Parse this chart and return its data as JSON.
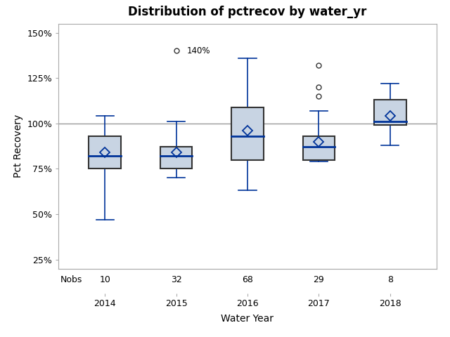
{
  "title": "Distribution of pctrecov by water_yr",
  "xlabel": "Water Year",
  "ylabel": "Pct Recovery",
  "years": [
    2014,
    2015,
    2016,
    2017,
    2018
  ],
  "nobs": [
    10,
    32,
    68,
    29,
    8
  ],
  "boxes": {
    "2014": {
      "q1": 75,
      "median": 82,
      "q3": 93,
      "whisker_low": 47,
      "whisker_high": 104,
      "mean": 84,
      "fliers": []
    },
    "2015": {
      "q1": 75,
      "median": 82,
      "q3": 87,
      "whisker_low": 70,
      "whisker_high": 101,
      "mean": 84,
      "fliers": [
        140
      ]
    },
    "2016": {
      "q1": 80,
      "median": 93,
      "q3": 109,
      "whisker_low": 63,
      "whisker_high": 136,
      "mean": 96,
      "fliers": []
    },
    "2017": {
      "q1": 80,
      "median": 87,
      "q3": 93,
      "whisker_low": 79,
      "whisker_high": 107,
      "mean": 90,
      "fliers": [
        115,
        120,
        132
      ]
    },
    "2018": {
      "q1": 99,
      "median": 101,
      "q3": 113,
      "whisker_low": 88,
      "whisker_high": 122,
      "mean": 104,
      "fliers": []
    }
  },
  "box_facecolor": "#c8d4e3",
  "box_edgecolor": "#333333",
  "median_color": "#003399",
  "whisker_color": "#003399",
  "flier_color": "#333333",
  "mean_marker_color": "#003399",
  "reference_line_y": 100,
  "reference_line_color": "#999999",
  "ylim_min": 20,
  "ylim_max": 155,
  "yticks": [
    25,
    50,
    75,
    100,
    125,
    150
  ],
  "ytick_labels": [
    "25%",
    "50%",
    "75%",
    "100%",
    "125%",
    "150%"
  ],
  "bg_color": "#ffffff",
  "plot_bg_color": "#ffffff",
  "nobs_label": "Nobs",
  "flier_annotation": {
    "year": 2015,
    "value": 140,
    "label": "140%"
  },
  "box_width": 0.45,
  "spine_color": "#aaaaaa",
  "tick_color": "#555555"
}
